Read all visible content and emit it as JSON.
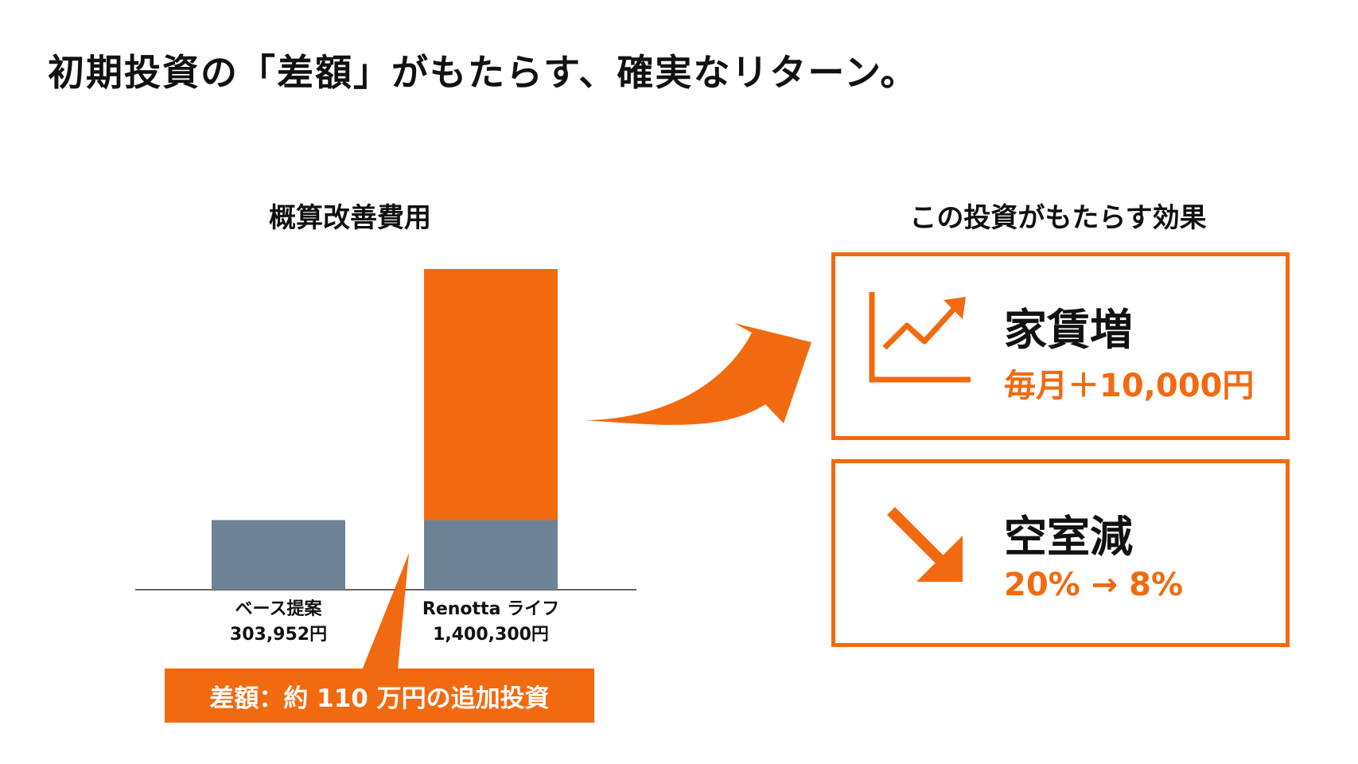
{
  "page": {
    "title": "初期投資の「差額」がもたらす、確実なリターン。"
  },
  "chart_data": {
    "type": "bar",
    "title": "概算改善費用",
    "categories": [
      "ベース提案",
      "Renotta ライフ"
    ],
    "value_labels": [
      "303,952円",
      "1,400,300円"
    ],
    "values": [
      303952,
      1400300
    ],
    "unit": "円",
    "stacked_base_value": 303952,
    "colors": {
      "base": "#6e8295",
      "increment": "#f26a10"
    }
  },
  "difference": {
    "label": "差額：約 110 万円の追加投資"
  },
  "effects": {
    "title": "この投資がもたらす効果",
    "items": [
      {
        "heading": "家賃増",
        "value": "毎月＋10,000円",
        "icon": "trending-up-chart-icon"
      },
      {
        "heading": "空室減",
        "value": "20% → 8%",
        "icon": "arrow-down-right-icon"
      }
    ]
  },
  "colors": {
    "accent": "#f26a10",
    "base_bar": "#6e8295",
    "text": "#111111"
  }
}
